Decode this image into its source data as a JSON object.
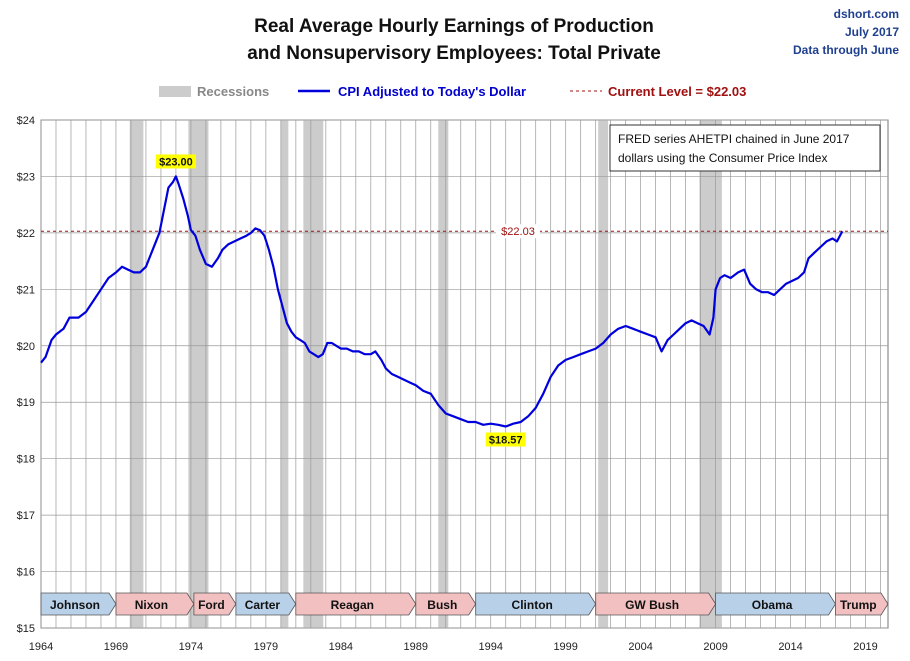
{
  "header": {
    "title_line1": "Real Average Hourly Earnings of Production",
    "title_line2": "and Nonsupervisory Employees: Total Private",
    "credit_site": "dshort.com",
    "credit_date": "July 2017",
    "credit_note": "Data through June"
  },
  "legend": {
    "recessions": "Recessions",
    "series": "CPI Adjusted to Today's Dollar",
    "current": "Current Level = $22.03"
  },
  "note": {
    "line1": "FRED series AHETPI chained in June 2017",
    "line2": "dollars using the Consumer Price Index"
  },
  "colors": {
    "series": "#0000dd",
    "recession": "#cccccc",
    "reference": "#a01010",
    "democrat": "#b8d0e8",
    "republican": "#f2c0c0",
    "callout": "#ffff00",
    "grid": "#999999"
  },
  "chart_data": {
    "type": "line",
    "title": "Real Average Hourly Earnings of Production and Nonsupervisory Employees: Total Private",
    "xlim": [
      1964,
      2020.5
    ],
    "ylim": [
      15,
      24
    ],
    "x_ticks": [
      "1964",
      "1969",
      "1974",
      "1979",
      "1984",
      "1989",
      "1994",
      "1999",
      "2004",
      "2009",
      "2014",
      "2019"
    ],
    "y_ticks": [
      "$15",
      "$16",
      "$17",
      "$18",
      "$19",
      "$20",
      "$21",
      "$22",
      "$23",
      "$24"
    ],
    "grid": "vertical yearly and horizontal dollar gridlines",
    "legend_position": "top",
    "reference_line": {
      "value": 22.03,
      "label": "$22.03"
    },
    "annotations": [
      {
        "x": 1973.0,
        "y": 23.0,
        "label": "$23.00"
      },
      {
        "x": 1995.0,
        "y": 18.57,
        "label": "$18.57"
      }
    ],
    "recessions": [
      [
        1969.92,
        1970.83
      ],
      [
        1973.83,
        1975.17
      ],
      [
        1980.0,
        1980.5
      ],
      [
        1981.5,
        1982.83
      ],
      [
        1990.5,
        1991.17
      ],
      [
        2001.17,
        2001.83
      ],
      [
        2007.92,
        2009.42
      ]
    ],
    "presidents": [
      {
        "name": "Johnson",
        "start": 1964.0,
        "end": 1969.0,
        "party": "D"
      },
      {
        "name": "Nixon",
        "start": 1969.0,
        "end": 1974.2,
        "party": "R"
      },
      {
        "name": "Ford",
        "start": 1974.2,
        "end": 1977.0,
        "party": "R"
      },
      {
        "name": "Carter",
        "start": 1977.0,
        "end": 1981.0,
        "party": "D"
      },
      {
        "name": "Reagan",
        "start": 1981.0,
        "end": 1989.0,
        "party": "R"
      },
      {
        "name": "Bush",
        "start": 1989.0,
        "end": 1993.0,
        "party": "R"
      },
      {
        "name": "Clinton",
        "start": 1993.0,
        "end": 2001.0,
        "party": "D"
      },
      {
        "name": "GW Bush",
        "start": 2001.0,
        "end": 2009.0,
        "party": "R"
      },
      {
        "name": "Obama",
        "start": 2009.0,
        "end": 2017.0,
        "party": "D"
      },
      {
        "name": "Trump",
        "start": 2017.0,
        "end": 2020.5,
        "party": "R"
      }
    ],
    "series": [
      {
        "name": "CPI Adjusted to Today's Dollar",
        "points": [
          [
            1964.0,
            19.7
          ],
          [
            1964.3,
            19.8
          ],
          [
            1964.7,
            20.1
          ],
          [
            1965.0,
            20.2
          ],
          [
            1965.5,
            20.3
          ],
          [
            1965.9,
            20.5
          ],
          [
            1966.5,
            20.5
          ],
          [
            1967.0,
            20.6
          ],
          [
            1967.5,
            20.8
          ],
          [
            1968.0,
            21.0
          ],
          [
            1968.5,
            21.2
          ],
          [
            1969.0,
            21.3
          ],
          [
            1969.4,
            21.4
          ],
          [
            1969.8,
            21.35
          ],
          [
            1970.2,
            21.3
          ],
          [
            1970.6,
            21.3
          ],
          [
            1971.0,
            21.4
          ],
          [
            1971.3,
            21.6
          ],
          [
            1971.6,
            21.8
          ],
          [
            1971.9,
            22.0
          ],
          [
            1972.2,
            22.4
          ],
          [
            1972.5,
            22.8
          ],
          [
            1972.8,
            22.9
          ],
          [
            1973.0,
            23.0
          ],
          [
            1973.2,
            22.85
          ],
          [
            1973.5,
            22.6
          ],
          [
            1973.8,
            22.3
          ],
          [
            1974.0,
            22.05
          ],
          [
            1974.3,
            21.95
          ],
          [
            1974.6,
            21.7
          ],
          [
            1975.0,
            21.45
          ],
          [
            1975.4,
            21.4
          ],
          [
            1975.8,
            21.55
          ],
          [
            1976.1,
            21.7
          ],
          [
            1976.5,
            21.8
          ],
          [
            1976.9,
            21.85
          ],
          [
            1977.3,
            21.9
          ],
          [
            1977.7,
            21.95
          ],
          [
            1978.0,
            22.0
          ],
          [
            1978.3,
            22.08
          ],
          [
            1978.6,
            22.05
          ],
          [
            1978.9,
            21.95
          ],
          [
            1979.2,
            21.7
          ],
          [
            1979.5,
            21.4
          ],
          [
            1979.8,
            21.0
          ],
          [
            1980.1,
            20.7
          ],
          [
            1980.4,
            20.4
          ],
          [
            1980.7,
            20.25
          ],
          [
            1981.0,
            20.15
          ],
          [
            1981.3,
            20.1
          ],
          [
            1981.6,
            20.05
          ],
          [
            1981.9,
            19.9
          ],
          [
            1982.2,
            19.85
          ],
          [
            1982.5,
            19.8
          ],
          [
            1982.8,
            19.85
          ],
          [
            1983.1,
            20.05
          ],
          [
            1983.4,
            20.05
          ],
          [
            1983.7,
            20.0
          ],
          [
            1984.0,
            19.95
          ],
          [
            1984.4,
            19.95
          ],
          [
            1984.8,
            19.9
          ],
          [
            1985.2,
            19.9
          ],
          [
            1985.6,
            19.85
          ],
          [
            1986.0,
            19.85
          ],
          [
            1986.3,
            19.9
          ],
          [
            1986.7,
            19.75
          ],
          [
            1987.0,
            19.6
          ],
          [
            1987.4,
            19.5
          ],
          [
            1987.8,
            19.45
          ],
          [
            1988.2,
            19.4
          ],
          [
            1988.6,
            19.35
          ],
          [
            1989.0,
            19.3
          ],
          [
            1989.5,
            19.2
          ],
          [
            1990.0,
            19.15
          ],
          [
            1990.5,
            18.95
          ],
          [
            1991.0,
            18.8
          ],
          [
            1991.5,
            18.75
          ],
          [
            1992.0,
            18.7
          ],
          [
            1992.5,
            18.65
          ],
          [
            1993.0,
            18.65
          ],
          [
            1993.5,
            18.6
          ],
          [
            1994.0,
            18.62
          ],
          [
            1994.5,
            18.6
          ],
          [
            1995.0,
            18.57
          ],
          [
            1995.5,
            18.62
          ],
          [
            1996.0,
            18.65
          ],
          [
            1996.5,
            18.75
          ],
          [
            1997.0,
            18.9
          ],
          [
            1997.5,
            19.15
          ],
          [
            1998.0,
            19.45
          ],
          [
            1998.5,
            19.65
          ],
          [
            1999.0,
            19.75
          ],
          [
            1999.5,
            19.8
          ],
          [
            2000.0,
            19.85
          ],
          [
            2000.5,
            19.9
          ],
          [
            2001.0,
            19.95
          ],
          [
            2001.5,
            20.05
          ],
          [
            2002.0,
            20.2
          ],
          [
            2002.5,
            20.3
          ],
          [
            2003.0,
            20.35
          ],
          [
            2003.5,
            20.3
          ],
          [
            2004.0,
            20.25
          ],
          [
            2004.5,
            20.2
          ],
          [
            2005.0,
            20.15
          ],
          [
            2005.4,
            19.9
          ],
          [
            2005.8,
            20.1
          ],
          [
            2006.2,
            20.2
          ],
          [
            2006.6,
            20.3
          ],
          [
            2007.0,
            20.4
          ],
          [
            2007.4,
            20.45
          ],
          [
            2007.8,
            20.4
          ],
          [
            2008.2,
            20.35
          ],
          [
            2008.6,
            20.2
          ],
          [
            2008.85,
            20.5
          ],
          [
            2009.0,
            21.0
          ],
          [
            2009.3,
            21.2
          ],
          [
            2009.6,
            21.25
          ],
          [
            2010.0,
            21.2
          ],
          [
            2010.5,
            21.3
          ],
          [
            2010.9,
            21.35
          ],
          [
            2011.3,
            21.1
          ],
          [
            2011.7,
            21.0
          ],
          [
            2012.1,
            20.95
          ],
          [
            2012.5,
            20.95
          ],
          [
            2012.9,
            20.9
          ],
          [
            2013.3,
            21.0
          ],
          [
            2013.7,
            21.1
          ],
          [
            2014.1,
            21.15
          ],
          [
            2014.5,
            21.2
          ],
          [
            2014.9,
            21.3
          ],
          [
            2015.2,
            21.55
          ],
          [
            2015.6,
            21.65
          ],
          [
            2016.0,
            21.75
          ],
          [
            2016.4,
            21.85
          ],
          [
            2016.8,
            21.9
          ],
          [
            2017.1,
            21.85
          ],
          [
            2017.45,
            22.03
          ]
        ]
      }
    ]
  }
}
